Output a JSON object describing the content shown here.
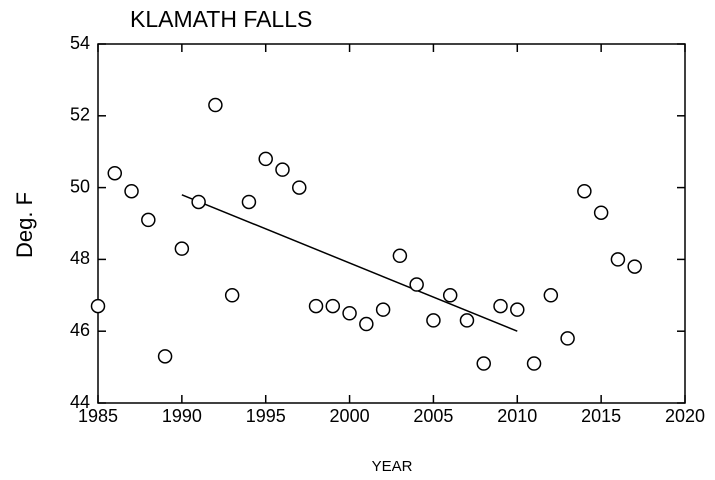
{
  "chart_data": {
    "type": "scatter",
    "title": "KLAMATH FALLS",
    "x_label": "YEAR",
    "y_label": "Deg. F",
    "x": [
      1985,
      1986,
      1987,
      1988,
      1989,
      1990,
      1991,
      1992,
      1993,
      1994,
      1995,
      1996,
      1997,
      1998,
      1999,
      2000,
      2001,
      2002,
      2003,
      2004,
      2005,
      2006,
      2007,
      2008,
      2009,
      2010,
      2011,
      2012,
      2013,
      2014,
      2015,
      2016,
      2017
    ],
    "values": [
      46.7,
      50.4,
      49.9,
      49.1,
      45.3,
      48.3,
      49.6,
      52.3,
      47.0,
      49.6,
      50.8,
      50.5,
      50.0,
      46.7,
      46.7,
      46.5,
      46.2,
      46.6,
      48.1,
      47.3,
      46.3,
      47.0,
      46.3,
      45.1,
      46.7,
      46.6,
      45.1,
      47.0,
      45.8,
      49.9,
      49.3,
      48.0,
      47.8
    ],
    "color": "#000000",
    "trend": {
      "x": [
        1990,
        2010
      ],
      "values": [
        49.8,
        46.0
      ]
    },
    "xlim": [
      1985,
      2020
    ],
    "xticks": [
      1985,
      1990,
      1995,
      2000,
      2005,
      2010,
      2015,
      2020
    ],
    "ylim": [
      44,
      54
    ],
    "yticks": [
      44,
      46,
      48,
      50,
      52,
      54
    ],
    "grid": false
  }
}
